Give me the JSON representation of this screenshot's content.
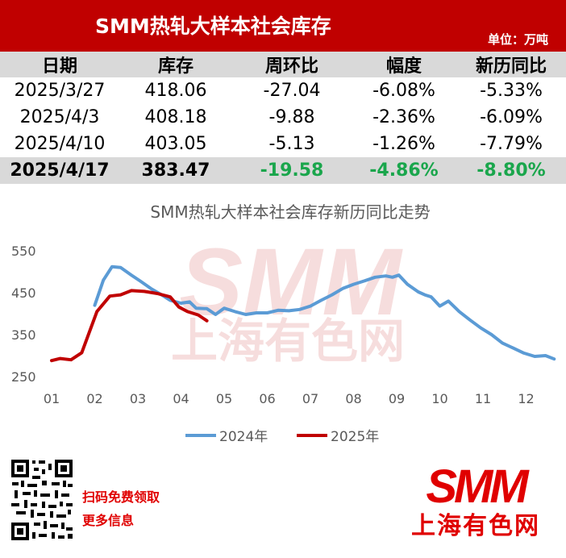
{
  "header": {
    "title": "SMM热轧大样本社会库存",
    "unit": "单位：万吨"
  },
  "table": {
    "columns": [
      "日期",
      "库存",
      "周环比",
      "幅度",
      "新历同比"
    ],
    "rows": [
      [
        "2025/3/27",
        "418.06",
        "-27.04",
        "-6.08%",
        "-5.33%"
      ],
      [
        "2025/4/3",
        "408.18",
        "-9.88",
        "-2.36%",
        "-6.09%"
      ],
      [
        "2025/4/10",
        "403.05",
        "-5.13",
        "-1.26%",
        "-7.79%"
      ],
      [
        "2025/4/17",
        "383.47",
        "-19.58",
        "-4.86%",
        "-8.80%"
      ]
    ]
  },
  "colors": {
    "brand_red": "#c00000",
    "series_2024": "#5b9bd5",
    "series_2025": "#c00000",
    "positive_green": "#1aa64c"
  },
  "watermark": {
    "latin": "SMM",
    "chinese": "上海有色网"
  },
  "chart_data": {
    "type": "line",
    "title": "SMM热轧大样本社会库存新历同比走势",
    "x_ticks": [
      "01",
      "02",
      "03",
      "04",
      "05",
      "06",
      "07",
      "08",
      "09",
      "10",
      "11",
      "12"
    ],
    "ylim": [
      250,
      550
    ],
    "y_ticks": [
      250,
      350,
      450,
      550
    ],
    "grid": false,
    "legend": "bottom",
    "series": [
      {
        "name": "2024年",
        "color": "#5b9bd5",
        "x": [
          2.0,
          2.2,
          2.4,
          2.6,
          2.85,
          3.05,
          3.3,
          3.55,
          3.75,
          4.0,
          4.2,
          4.35,
          4.6,
          4.8,
          5.0,
          5.25,
          5.5,
          5.75,
          6.0,
          6.25,
          6.5,
          6.75,
          7.0,
          7.25,
          7.5,
          7.75,
          8.0,
          8.25,
          8.5,
          8.75,
          8.9,
          9.05,
          9.25,
          9.5,
          9.65,
          9.8,
          10.0,
          10.2,
          10.45,
          10.7,
          10.95,
          11.2,
          11.45,
          11.7,
          11.95,
          12.2,
          12.45,
          12.65
        ],
        "y": [
          420,
          480,
          512,
          510,
          492,
          478,
          460,
          445,
          432,
          425,
          428,
          413,
          412,
          398,
          413,
          405,
          398,
          402,
          402,
          408,
          407,
          410,
          418,
          432,
          445,
          460,
          470,
          478,
          487,
          490,
          487,
          492,
          470,
          452,
          445,
          440,
          418,
          430,
          405,
          385,
          366,
          350,
          330,
          318,
          306,
          298,
          300,
          292
        ]
      },
      {
        "name": "2025年",
        "color": "#c00000",
        "x": [
          1.0,
          1.2,
          1.45,
          1.7,
          2.05,
          2.35,
          2.6,
          2.85,
          3.15,
          3.45,
          3.75,
          3.95,
          4.15,
          4.4,
          4.6
        ],
        "y": [
          288,
          293,
          290,
          307,
          405,
          442,
          445,
          455,
          453,
          448,
          440,
          416,
          405,
          397,
          383
        ]
      }
    ]
  },
  "footer": {
    "qr_line1": "扫码免费领取",
    "qr_line2": "更多信息",
    "logo_latin": "SMM",
    "logo_chinese": "上海有色网"
  }
}
